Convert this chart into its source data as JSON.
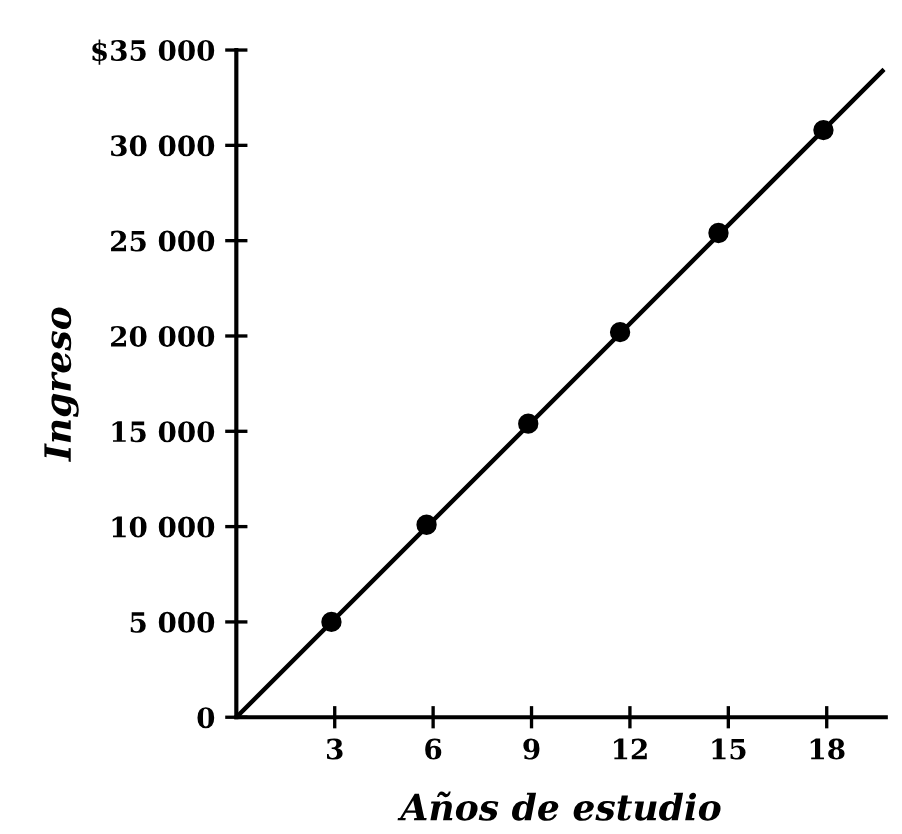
{
  "chart_data": {
    "type": "scatter",
    "xlabel": "Años de estudio",
    "ylabel": "Ingreso",
    "series": [
      {
        "type": "line",
        "color": "#000000",
        "x": [
          0,
          19.7
        ],
        "values": [
          0,
          33900
        ],
        "marker": "none"
      },
      {
        "color": "#000000",
        "x": [
          2.9,
          5.8,
          8.9,
          11.7,
          14.7,
          17.9
        ],
        "values": [
          5000,
          10100,
          15400,
          20200,
          25400,
          30800
        ],
        "marker": "circle"
      }
    ],
    "xlim": [
      0,
      19.8
    ],
    "xticks": [
      3,
      6,
      9,
      12,
      15,
      18
    ],
    "ylim": [
      0,
      35000
    ],
    "yticks": [
      {
        "value": 0,
        "label": "0"
      },
      {
        "value": 5000,
        "label": "5 000"
      },
      {
        "value": 10000,
        "label": "10 000"
      },
      {
        "value": 15000,
        "label": "15 000"
      },
      {
        "value": 20000,
        "label": "20 000"
      },
      {
        "value": 25000,
        "label": "25 000"
      },
      {
        "value": 30000,
        "label": "30 000"
      },
      {
        "value": 35000,
        "label": "$35 000"
      }
    ],
    "grid": false,
    "legend": false
  }
}
